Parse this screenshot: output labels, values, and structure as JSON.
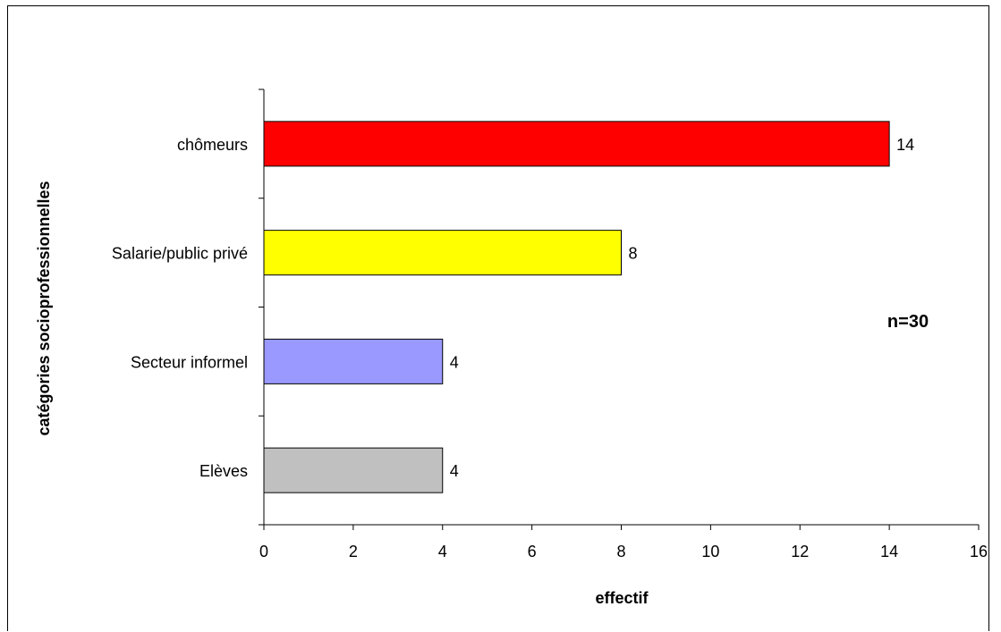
{
  "chart_data": {
    "type": "bar",
    "orientation": "horizontal",
    "categories": [
      "chômeurs",
      "Salarie/public privé",
      "Secteur informel",
      "Elèves"
    ],
    "values": [
      14,
      8,
      4,
      4
    ],
    "colors": [
      "#ff0000",
      "#ffff00",
      "#9999ff",
      "#c0c0c0"
    ],
    "xlabel": "effectif",
    "ylabel": "catégories socioprofessionnelles",
    "xlim": [
      0,
      16
    ],
    "xticks": [
      0,
      2,
      4,
      6,
      8,
      10,
      12,
      14,
      16
    ],
    "annotation": "n=30",
    "grid": false,
    "legend": "none"
  }
}
